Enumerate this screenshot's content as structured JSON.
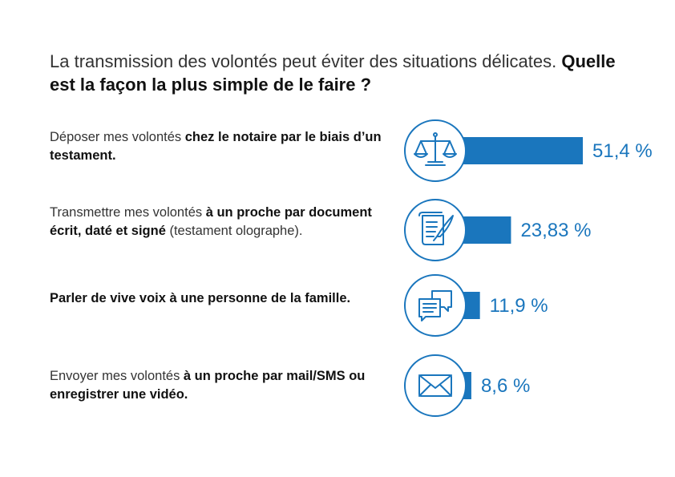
{
  "title": {
    "part1": "La transmission des volontés peut éviter des situations délicates.",
    "part2": "Quelle est la façon la plus simple de le faire ?"
  },
  "rows": [
    {
      "pre": "Déposer mes volontés ",
      "bold": "chez le notaire par le biais d’un testament.",
      "post": "",
      "icon": "scales-icon"
    },
    {
      "pre": "Transmettre mes volontés ",
      "bold": "à un proche par document écrit, daté et signé",
      "post": " (testament olographe).",
      "icon": "document-quill-icon"
    },
    {
      "pre": "",
      "bold": "Parler de vive voix à une personne de la famille.",
      "post": "",
      "icon": "speech-bubbles-icon"
    },
    {
      "pre": "Envoyer mes volontés ",
      "bold": "à un proche par mail/SMS ou enregistrer une vidéo.",
      "post": "",
      "icon": "envelope-icon"
    }
  ],
  "colors": {
    "accent": "#1a76bd"
  },
  "chart_data": {
    "type": "bar",
    "orientation": "horizontal",
    "categories": [
      "Déposer mes volontés chez le notaire par le biais d’un testament.",
      "Transmettre mes volontés à un proche par document écrit, daté et signé (testament olographe).",
      "Parler de vive voix à une personne de la famille.",
      "Envoyer mes volontés à un proche par mail/SMS ou enregistrer une vidéo."
    ],
    "values": [
      51.4,
      23.83,
      11.9,
      8.6
    ],
    "value_labels": [
      "51,4 %",
      "23,83 %",
      "11,9 %",
      "8,6 %"
    ],
    "unit": "%"
  }
}
